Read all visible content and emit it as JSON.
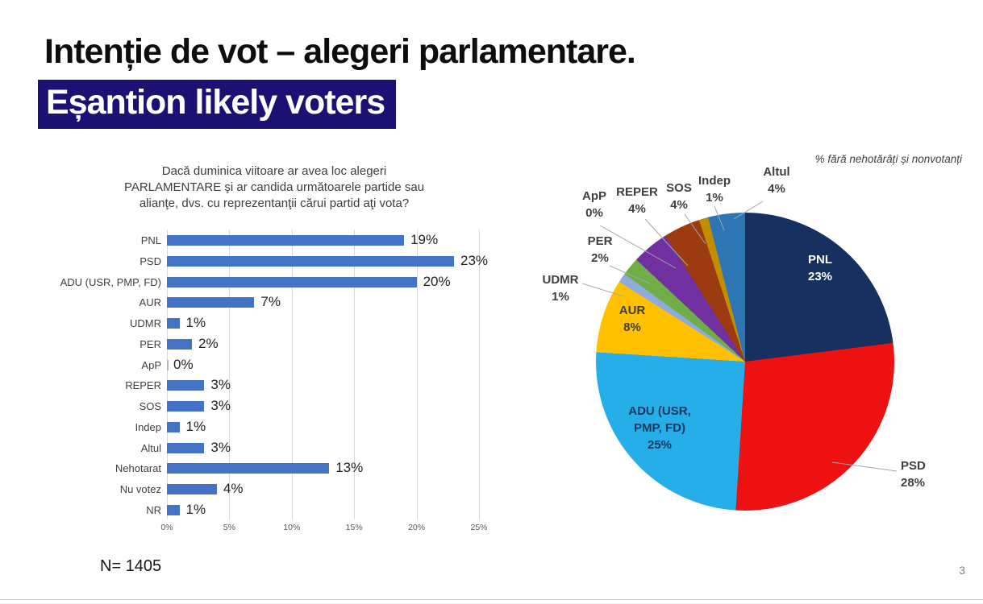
{
  "slide": {
    "title_line1": "Intenție de vot – alegeri parlamentare.",
    "title_line2": "Eșantion likely voters",
    "title_highlight_color": "#1a1172",
    "sample_note": "N= 1405",
    "page_number": "3"
  },
  "chart_data": [
    {
      "type": "bar",
      "orientation": "horizontal",
      "title": "Dacă duminica viitoare ar avea loc alegeri PARLAMENTARE şi ar candida următoarele partide sau alianţe, dvs. cu reprezentanţii cărui partid aţi vota?",
      "title_lines": [
        "Dacă duminica viitoare ar avea loc alegeri",
        "PARLAMENTARE şi ar candida următoarele partide sau",
        "alianţe, dvs. cu reprezentanţii cărui partid aţi vota?"
      ],
      "categories": [
        "PNL",
        "PSD",
        "ADU (USR, PMP, FD)",
        "AUR",
        "UDMR",
        "PER",
        "ApP",
        "REPER",
        "SOS",
        "Indep",
        "Altul",
        "Nehotarat",
        "Nu votez",
        "NR"
      ],
      "values": [
        19,
        23,
        20,
        7,
        1,
        2,
        0,
        3,
        3,
        1,
        3,
        13,
        4,
        1
      ],
      "value_labels": [
        "19%",
        "23%",
        "20%",
        "7%",
        "1%",
        "2%",
        "0%",
        "3%",
        "3%",
        "1%",
        "3%",
        "13%",
        "4%",
        "1%"
      ],
      "x_ticks": [
        "0%",
        "5%",
        "10%",
        "15%",
        "20%",
        "25%"
      ],
      "xlim": [
        0,
        25
      ],
      "bar_color": "#4472c4",
      "grid": true,
      "legend": "none"
    },
    {
      "type": "pie",
      "note": "% fără nehotărâți și nonvotanți",
      "start_angle_deg": 0,
      "direction": "clockwise",
      "slices": [
        {
          "label": "PNL",
          "value": 23,
          "pct": "23%",
          "color": "#16305f"
        },
        {
          "label": "PSD",
          "value": 28,
          "pct": "28%",
          "color": "#ee1111"
        },
        {
          "label": "ADU (USR, PMP, FD)",
          "label_lines": [
            "ADU (USR,",
            "PMP, FD)"
          ],
          "value": 25,
          "pct": "25%",
          "color": "#26aee8"
        },
        {
          "label": "AUR",
          "value": 8,
          "pct": "8%",
          "color": "#ffc000"
        },
        {
          "label": "UDMR",
          "value": 1,
          "pct": "1%",
          "color": "#8faadc"
        },
        {
          "label": "PER",
          "value": 2,
          "pct": "2%",
          "color": "#70ad47"
        },
        {
          "label": "ApP",
          "value": 0,
          "pct": "0%"
        },
        {
          "label": "REPER",
          "value": 4,
          "pct": "4%",
          "color": "#7030a0"
        },
        {
          "label": "SOS",
          "value": 4,
          "pct": "4%",
          "color": "#9c3b10"
        },
        {
          "label": "Indep",
          "value": 1,
          "pct": "1%",
          "color": "#bf8f00"
        },
        {
          "label": "Altul",
          "value": 4,
          "pct": "4%",
          "color": "#2e75b6"
        }
      ]
    }
  ]
}
